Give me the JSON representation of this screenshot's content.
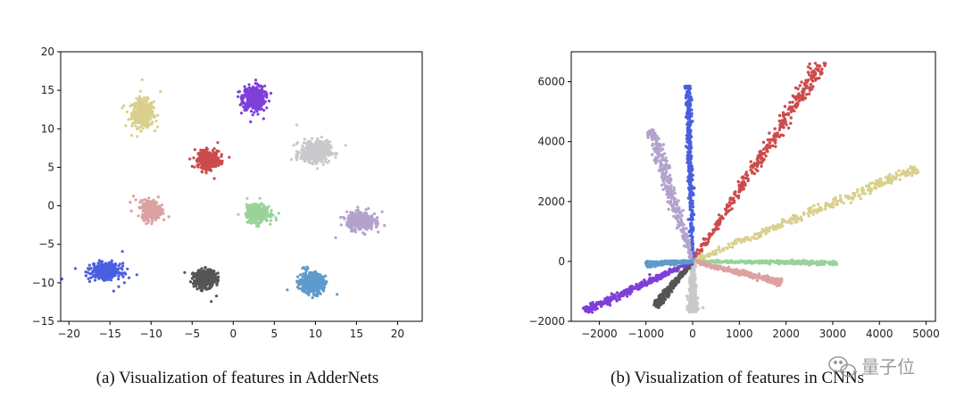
{
  "chart_data": [
    {
      "type": "scatter",
      "caption": "(a) Visualization of features in AdderNets",
      "xlim": [
        -21,
        23
      ],
      "ylim": [
        -15,
        20
      ],
      "xticks": [
        -20,
        -15,
        -10,
        -5,
        0,
        5,
        10,
        15,
        20
      ],
      "yticks": [
        -15,
        -10,
        -5,
        0,
        5,
        10,
        15,
        20
      ],
      "xtick_labels": [
        "−20",
        "−15",
        "−10",
        "−5",
        "0",
        "5",
        "10",
        "15",
        "20"
      ],
      "ytick_labels": [
        "−15",
        "−10",
        "−5",
        "0",
        "5",
        "10",
        "15",
        "20"
      ],
      "grid": false,
      "series": [
        {
          "color": "#d9d08e",
          "center": [
            -11,
            12
          ],
          "spread": [
            1.2,
            1.6
          ]
        },
        {
          "color": "#7f3fd8",
          "center": [
            2.5,
            14
          ],
          "spread": [
            1.2,
            1.4
          ]
        },
        {
          "color": "#cc4b4b",
          "center": [
            -3,
            6
          ],
          "spread": [
            1.1,
            1.0
          ]
        },
        {
          "color": "#c9c9cc",
          "center": [
            10,
            7
          ],
          "spread": [
            1.6,
            1.2
          ]
        },
        {
          "color": "#dda1a1",
          "center": [
            -10,
            -0.5
          ],
          "spread": [
            1.0,
            1.1
          ]
        },
        {
          "color": "#9ad39a",
          "center": [
            3,
            -1
          ],
          "spread": [
            1.2,
            1.0
          ]
        },
        {
          "color": "#b3a3cc",
          "center": [
            15.5,
            -2
          ],
          "spread": [
            1.5,
            1.0
          ]
        },
        {
          "color": "#4a5fe0",
          "center": [
            -15.5,
            -8.5
          ],
          "spread": [
            1.6,
            0.9
          ]
        },
        {
          "color": "#555555",
          "center": [
            -3.5,
            -9.5
          ],
          "spread": [
            1.2,
            1.0
          ]
        },
        {
          "color": "#5e9acb",
          "center": [
            9.5,
            -10
          ],
          "spread": [
            1.3,
            1.2
          ]
        }
      ]
    },
    {
      "type": "scatter",
      "caption": "(b) Visualization of features in CNNs",
      "xlim": [
        -2600,
        5200
      ],
      "ylim": [
        -2000,
        7000
      ],
      "xticks": [
        -2000,
        -1000,
        0,
        1000,
        2000,
        3000,
        4000,
        5000
      ],
      "yticks": [
        -2000,
        0,
        2000,
        4000,
        6000
      ],
      "xtick_labels": [
        "−2000",
        "−1000",
        "0",
        "1000",
        "2000",
        "3000",
        "4000",
        "5000"
      ],
      "ytick_labels": [
        "−2000",
        "0",
        "2000",
        "4000",
        "6000"
      ],
      "grid": false,
      "series": [
        {
          "color": "#cc4b4b",
          "endpoint": [
            2800,
            6700
          ],
          "width": 180
        },
        {
          "color": "#d9d08e",
          "endpoint": [
            4800,
            3100
          ],
          "width": 170
        },
        {
          "color": "#4a5fe0",
          "endpoint": [
            -100,
            5900
          ],
          "width": 70
        },
        {
          "color": "#b3a3cc",
          "endpoint": [
            -900,
            4400
          ],
          "width": 150
        },
        {
          "color": "#9ad39a",
          "endpoint": [
            3100,
            -50
          ],
          "width": 70
        },
        {
          "color": "#dda1a1",
          "endpoint": [
            1900,
            -700
          ],
          "width": 100
        },
        {
          "color": "#c9c9cc",
          "endpoint": [
            0,
            -1700
          ],
          "width": 110
        },
        {
          "color": "#555555",
          "endpoint": [
            -800,
            -1500
          ],
          "width": 90
        },
        {
          "color": "#7f3fd8",
          "endpoint": [
            -2300,
            -1650
          ],
          "width": 120
        },
        {
          "color": "#5e9acb",
          "endpoint": [
            -1000,
            -100
          ],
          "width": 90
        }
      ]
    }
  ],
  "watermark": "量子位"
}
